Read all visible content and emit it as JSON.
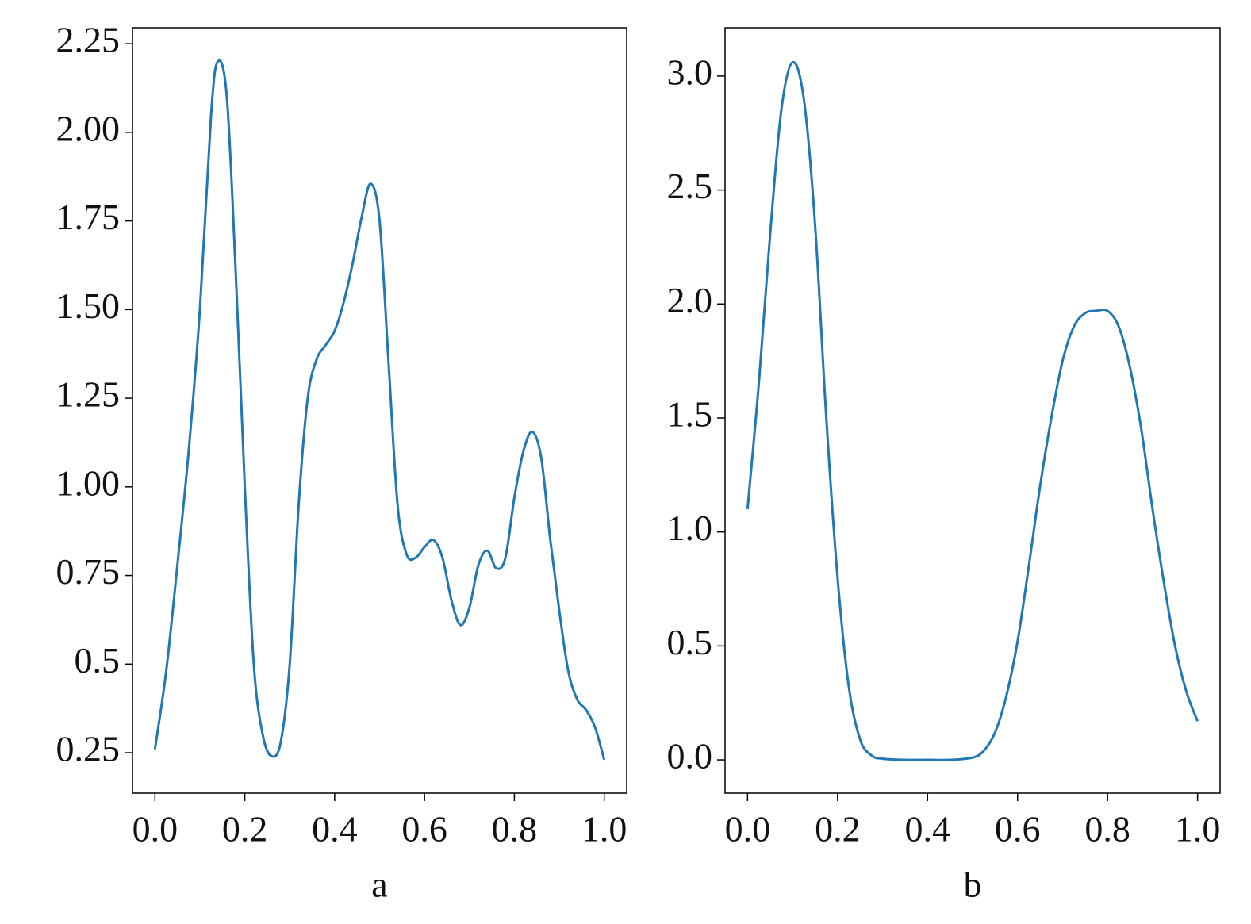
{
  "chart_data": [
    {
      "type": "line",
      "xlabel": "a",
      "color": "#1f77b4",
      "x": [
        0,
        0.025,
        0.05,
        0.075,
        0.1,
        0.125,
        0.14,
        0.16,
        0.18,
        0.2,
        0.22,
        0.24,
        0.26,
        0.28,
        0.3,
        0.32,
        0.34,
        0.36,
        0.38,
        0.4,
        0.42,
        0.44,
        0.46,
        0.48,
        0.5,
        0.52,
        0.54,
        0.56,
        0.58,
        0.6,
        0.62,
        0.64,
        0.66,
        0.68,
        0.7,
        0.72,
        0.74,
        0.76,
        0.78,
        0.8,
        0.82,
        0.84,
        0.86,
        0.88,
        0.9,
        0.92,
        0.94,
        0.96,
        0.98,
        1.0
      ],
      "values": [
        0.26,
        0.48,
        0.78,
        1.1,
        1.5,
        2.05,
        2.2,
        2.1,
        1.6,
        1.0,
        0.5,
        0.3,
        0.24,
        0.28,
        0.5,
        0.95,
        1.25,
        1.36,
        1.4,
        1.44,
        1.52,
        1.63,
        1.76,
        1.855,
        1.75,
        1.35,
        0.95,
        0.81,
        0.8,
        0.83,
        0.85,
        0.8,
        0.68,
        0.61,
        0.66,
        0.78,
        0.82,
        0.77,
        0.8,
        0.97,
        1.1,
        1.155,
        1.08,
        0.85,
        0.65,
        0.48,
        0.4,
        0.37,
        0.32,
        0.23
      ],
      "xlim": [
        -0.05,
        1.05
      ],
      "ylim": [
        0.136,
        2.295
      ],
      "xticks": [
        {
          "value": 0,
          "label": "0.0"
        },
        0.2,
        0.4,
        0.6,
        0.8,
        {
          "value": 1,
          "label": "1.0"
        }
      ],
      "yticks": [
        0.25,
        0.5,
        0.75,
        {
          "value": 1,
          "label": "1.00"
        },
        1.25,
        {
          "value": 1.5,
          "label": "1.50"
        },
        1.75,
        {
          "value": 2,
          "label": "2.00"
        },
        2.25
      ]
    },
    {
      "type": "line",
      "xlabel": "b",
      "color": "#1f77b4",
      "x": [
        0,
        0.025,
        0.05,
        0.075,
        0.1,
        0.125,
        0.15,
        0.175,
        0.2,
        0.225,
        0.25,
        0.275,
        0.3,
        0.35,
        0.4,
        0.45,
        0.5,
        0.525,
        0.55,
        0.575,
        0.6,
        0.625,
        0.65,
        0.675,
        0.7,
        0.725,
        0.75,
        0.775,
        0.8,
        0.825,
        0.85,
        0.875,
        0.9,
        0.925,
        0.95,
        0.975,
        1.0
      ],
      "values": [
        1.1,
        1.65,
        2.3,
        2.85,
        3.06,
        2.9,
        2.35,
        1.5,
        0.8,
        0.32,
        0.09,
        0.02,
        0.005,
        0,
        0,
        0,
        0.01,
        0.04,
        0.12,
        0.28,
        0.52,
        0.85,
        1.2,
        1.5,
        1.75,
        1.9,
        1.96,
        1.97,
        1.97,
        1.9,
        1.72,
        1.45,
        1.1,
        0.78,
        0.5,
        0.3,
        0.17
      ],
      "xlim": [
        -0.05,
        1.05
      ],
      "ylim": [
        -0.146,
        3.212
      ],
      "xticks": [
        {
          "value": 0,
          "label": "0.0"
        },
        0.2,
        0.4,
        0.6,
        0.8,
        {
          "value": 1,
          "label": "1.0"
        }
      ],
      "yticks": [
        {
          "value": 0,
          "label": "0.0"
        },
        0.5,
        {
          "value": 1,
          "label": "1.0"
        },
        1.5,
        {
          "value": 2,
          "label": "2.0"
        },
        2.5,
        {
          "value": 3,
          "label": "3.0"
        }
      ]
    }
  ]
}
